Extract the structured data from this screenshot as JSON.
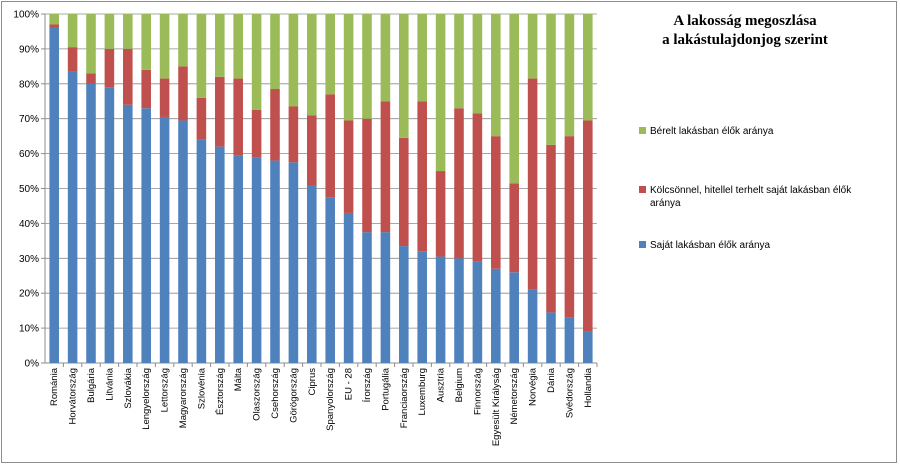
{
  "chart_data": {
    "type": "bar",
    "stacked": true,
    "title_lines": [
      "A lakosság megoszlása",
      "a lakástulajdonjog szerint"
    ],
    "ylim": [
      0,
      100
    ],
    "y_ticks": [
      "0%",
      "10%",
      "20%",
      "30%",
      "40%",
      "50%",
      "60%",
      "70%",
      "80%",
      "90%",
      "100%"
    ],
    "grid": true,
    "legend_position": "right",
    "categories": [
      "Románia",
      "Horvátország",
      "Bulgária",
      "Litvánia",
      "Szlovákia",
      "Lengyelország",
      "Lettország",
      "Magyarország",
      "Szlovénia",
      "Észtország",
      "Málta",
      "Olaszország",
      "Csehország",
      "Görögország",
      "Ciprus",
      "Spanyolország",
      "EU - 28",
      "Írország",
      "Portugália",
      "Franciaország",
      "Luxemburg",
      "Ausztria",
      "Belgium",
      "Finnország",
      "Egyesült Királyság",
      "Németország",
      "Norvégia",
      "Dánia",
      "Svédország",
      "Hollandia"
    ],
    "series": [
      {
        "name": "Saját lakásban élők aránya",
        "color": "#4f81bd",
        "values": [
          96,
          83.5,
          80,
          79,
          74,
          73,
          70.5,
          69.5,
          64,
          62,
          59.5,
          59,
          58,
          57.5,
          51,
          47.5,
          43,
          37.5,
          37.5,
          33.5,
          32,
          30.5,
          30,
          29,
          27,
          26,
          21,
          14.5,
          13,
          9
        ]
      },
      {
        "name": "Kölcsönnel, hitellel terhelt saját lakásban élők aránya",
        "color": "#c0504d",
        "values": [
          1,
          7,
          3,
          11,
          16,
          11,
          11,
          15.5,
          12,
          20,
          22,
          13.5,
          20.5,
          16,
          20,
          29.5,
          26.5,
          32.5,
          37.5,
          31,
          43,
          24.5,
          43,
          42.5,
          38,
          25.5,
          60.5,
          48,
          52,
          60.5
        ]
      },
      {
        "name": "Bérelt lakásban élők aránya",
        "color": "#9bbb59",
        "values": [
          3,
          9.5,
          17,
          10,
          10,
          16,
          18.5,
          15,
          24,
          18,
          18.5,
          27.5,
          21.5,
          26.5,
          29,
          23,
          30.5,
          30,
          25,
          35.5,
          25,
          45,
          27,
          28.5,
          35,
          48.5,
          18.5,
          37.5,
          35,
          30.5
        ]
      }
    ],
    "legend_order": [
      2,
      1,
      0
    ]
  }
}
